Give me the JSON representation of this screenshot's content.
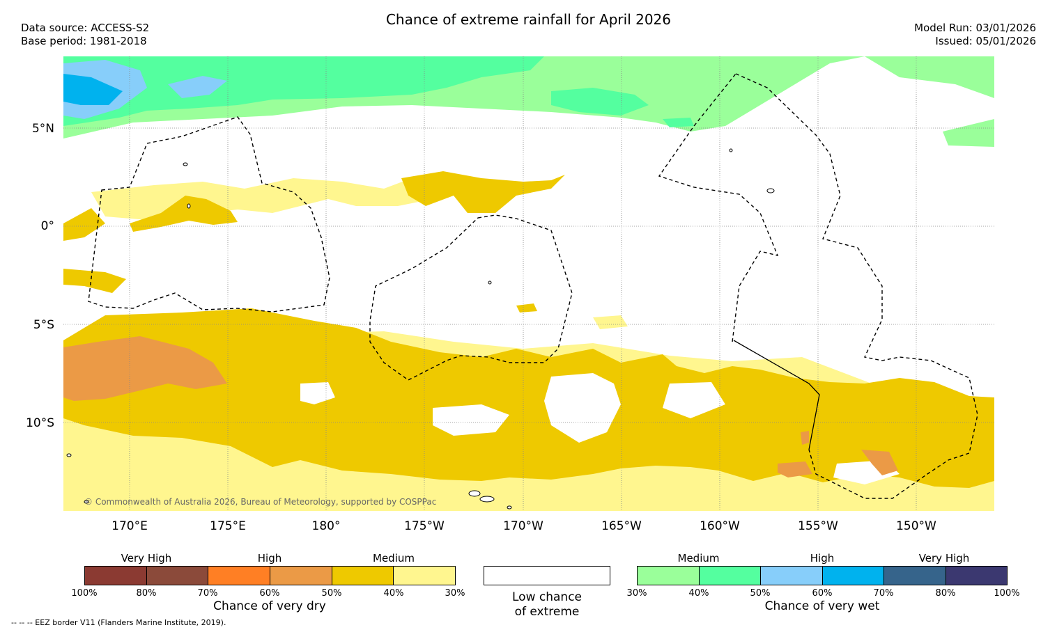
{
  "header": {
    "title": "Chance of extreme rainfall for April 2026",
    "data_source": "Data source: ACCESS-S2",
    "base_period": "Base period: 1981-2018",
    "model_run": "Model Run: 03/01/2026",
    "issued": "Issued: 05/01/2026"
  },
  "map": {
    "lat_labels": [
      "5°N",
      "0°",
      "5°S",
      "10°S"
    ],
    "lon_labels": [
      "170°E",
      "175°E",
      "180°",
      "175°W",
      "170°W",
      "165°W",
      "160°W",
      "155°W",
      "150°W"
    ],
    "copyright": "© Commonwealth of Australia 2026, Bureau of Meteorology, supported by COSPPac",
    "colors": {
      "dry_30_40": "#fff68f",
      "dry_40_50": "#eec900",
      "dry_50_60": "#eb9a46",
      "wet_30_40": "#9aff9a",
      "wet_40_50": "#54ff9f",
      "wet_50_60": "#87cefa",
      "wet_60_70": "#00b2ee"
    }
  },
  "legend": {
    "dry": {
      "headings": [
        "Very High",
        "High",
        "Medium"
      ],
      "ticks": [
        "100%",
        "80%",
        "70%",
        "60%",
        "50%",
        "40%",
        "30%"
      ],
      "colors": [
        "#8b3a32",
        "#8b4a3a",
        "#ff7f24",
        "#eb9a46",
        "#eec900",
        "#fff68f"
      ],
      "caption": "Chance of very dry"
    },
    "low": {
      "line1": "Low chance",
      "line2": "of extreme"
    },
    "wet": {
      "headings": [
        "Medium",
        "High",
        "Very High"
      ],
      "ticks": [
        "30%",
        "40%",
        "50%",
        "60%",
        "70%",
        "80%",
        "100%"
      ],
      "colors": [
        "#9aff9a",
        "#54ff9f",
        "#87cefa",
        "#00b2ee",
        "#36648b",
        "#3b3870"
      ],
      "caption": "Chance of very wet"
    }
  },
  "footnote": "--  --  -- EEZ border V11 (Flanders Marine Institute, 2019)."
}
